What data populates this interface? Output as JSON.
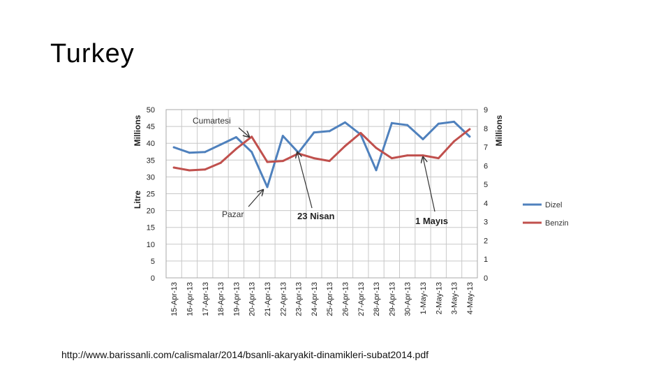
{
  "slide": {
    "title": "Turkey",
    "source_url": "http://www.barissanli.com/calismalar/2014/bsanli-akaryakit-dinamikleri-subat2014.pdf"
  },
  "chart_data": {
    "type": "line",
    "title": "",
    "ylabel_left": "Litre",
    "ylabel_left_unit": "Millions",
    "ylabel_right_unit": "Millions",
    "ylim_left": [
      0,
      50
    ],
    "ylim_right": [
      0,
      9
    ],
    "yticks_left": [
      "0",
      "5",
      "10",
      "15",
      "20",
      "25",
      "30",
      "35",
      "40",
      "45",
      "50"
    ],
    "yticks_right": [
      "0",
      "1",
      "2",
      "3",
      "4",
      "5",
      "6",
      "7",
      "8",
      "9"
    ],
    "grid": true,
    "legend_position": "right",
    "categories": [
      "15-Apr-13",
      "16-Apr-13",
      "17-Apr-13",
      "18-Apr-13",
      "19-Apr-13",
      "20-Apr-13",
      "21-Apr-13",
      "22-Apr-13",
      "23-Apr-13",
      "24-Apr-13",
      "25-Apr-13",
      "26-Apr-13",
      "27-Apr-13",
      "28-Apr-13",
      "29-Apr-13",
      "30-Apr-13",
      "1-May-13",
      "2-May-13",
      "3-May-13",
      "4-May-13"
    ],
    "series": [
      {
        "name": "Dizel",
        "axis": "left",
        "color": "#4f81bd",
        "values": [
          38.8,
          37.2,
          37.4,
          39.6,
          41.8,
          37.4,
          27.0,
          42.2,
          37.2,
          43.2,
          43.6,
          46.2,
          42.6,
          32.0,
          46.0,
          45.4,
          41.2,
          45.8,
          46.4,
          42.0
        ]
      },
      {
        "name": "Benzin",
        "axis": "right",
        "color": "#c0504d",
        "values": [
          5.9,
          5.75,
          5.8,
          6.15,
          6.9,
          7.55,
          6.2,
          6.25,
          6.65,
          6.4,
          6.25,
          7.05,
          7.75,
          6.95,
          6.4,
          6.55,
          6.55,
          6.4,
          7.3,
          7.95
        ]
      }
    ],
    "annotations": [
      {
        "text": "Cumartesi",
        "style": "normal"
      },
      {
        "text": "Pazar",
        "style": "normal"
      },
      {
        "text": "23 Nisan",
        "style": "bold"
      },
      {
        "text": "1 Mayıs",
        "style": "bold"
      }
    ]
  }
}
